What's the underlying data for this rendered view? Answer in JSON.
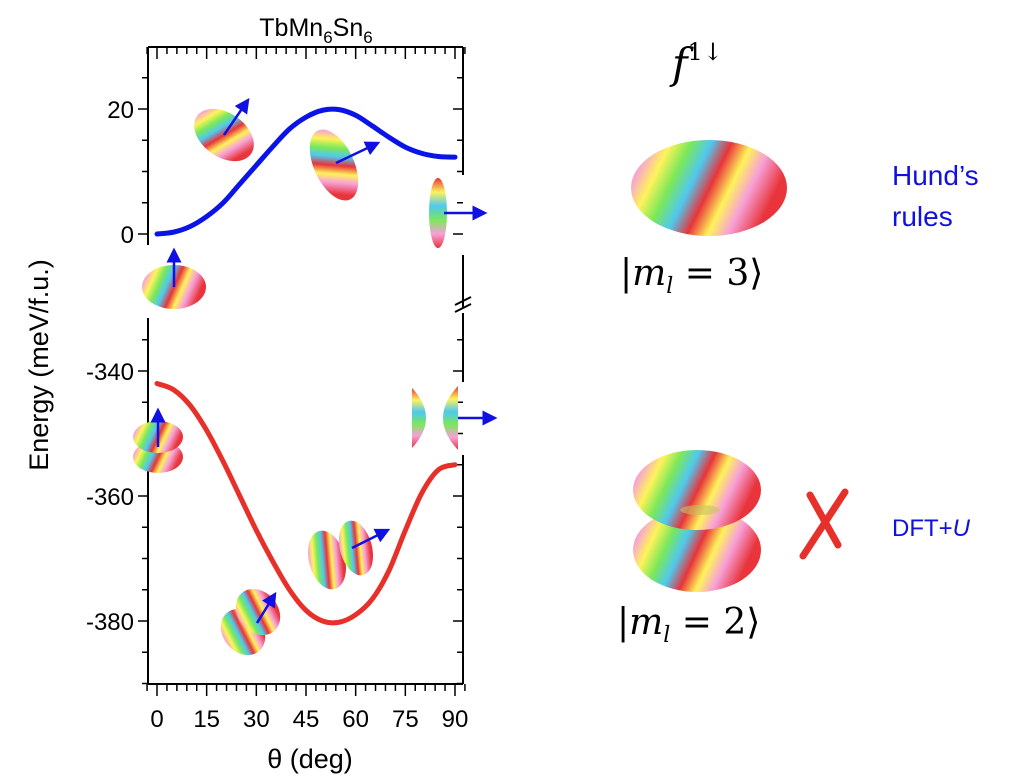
{
  "chart_data": {
    "type": "line",
    "title": "TbMn6Sn6",
    "title_parts": {
      "a": "TbMn",
      "sub1": "6",
      "b": "Sn",
      "sub2": "6"
    },
    "xlabel": "θ (deg)",
    "ylabel": "Energy (meV/f.u.)",
    "xlim": [
      0,
      90
    ],
    "x_ticks": [
      "0",
      "15",
      "30",
      "45",
      "60",
      "75",
      "90"
    ],
    "y_axis_break": true,
    "ylim_upper": [
      -10,
      30
    ],
    "ylim_lower": [
      -390,
      -332
    ],
    "y_ticks_upper": [
      "0",
      "20"
    ],
    "y_ticks_lower": [
      "-340",
      "-360",
      "-380"
    ],
    "grid": false,
    "x": [
      0,
      5,
      10,
      15,
      20,
      25,
      30,
      35,
      40,
      45,
      50,
      55,
      60,
      65,
      70,
      75,
      80,
      85,
      90
    ],
    "series": [
      {
        "color": "#0a14e6",
        "panel": "upper",
        "values": [
          0,
          0.3,
          1.2,
          2.8,
          5,
          8,
          11,
          14,
          16.8,
          18.7,
          19.8,
          19.9,
          19,
          17.3,
          15.5,
          13.9,
          12.9,
          12.4,
          12.3
        ]
      },
      {
        "color": "#e8302a",
        "panel": "lower",
        "values": [
          -342,
          -343,
          -345.5,
          -349.5,
          -354.5,
          -360,
          -365.5,
          -370.5,
          -375,
          -378.3,
          -380,
          -380.2,
          -379,
          -376.5,
          -372,
          -365.5,
          -359.5,
          -355.8,
          -355
        ]
      }
    ]
  },
  "annotations": {
    "f_label": {
      "base": "f",
      "sup": "1↓"
    },
    "ket3": "|m",
    "ket3_sub": "l",
    "ket3_rest": " = 3⟩",
    "ket2": "|m",
    "ket2_sub": "l",
    "ket2_rest": " = 2⟩",
    "hund_line1": "Hund’s",
    "hund_line2": "rules",
    "dft": "DFT+",
    "dft_u": "U",
    "label_color": "#1010e0",
    "cross_color": "#e8302a",
    "cross_icon": "red-x-cross"
  }
}
